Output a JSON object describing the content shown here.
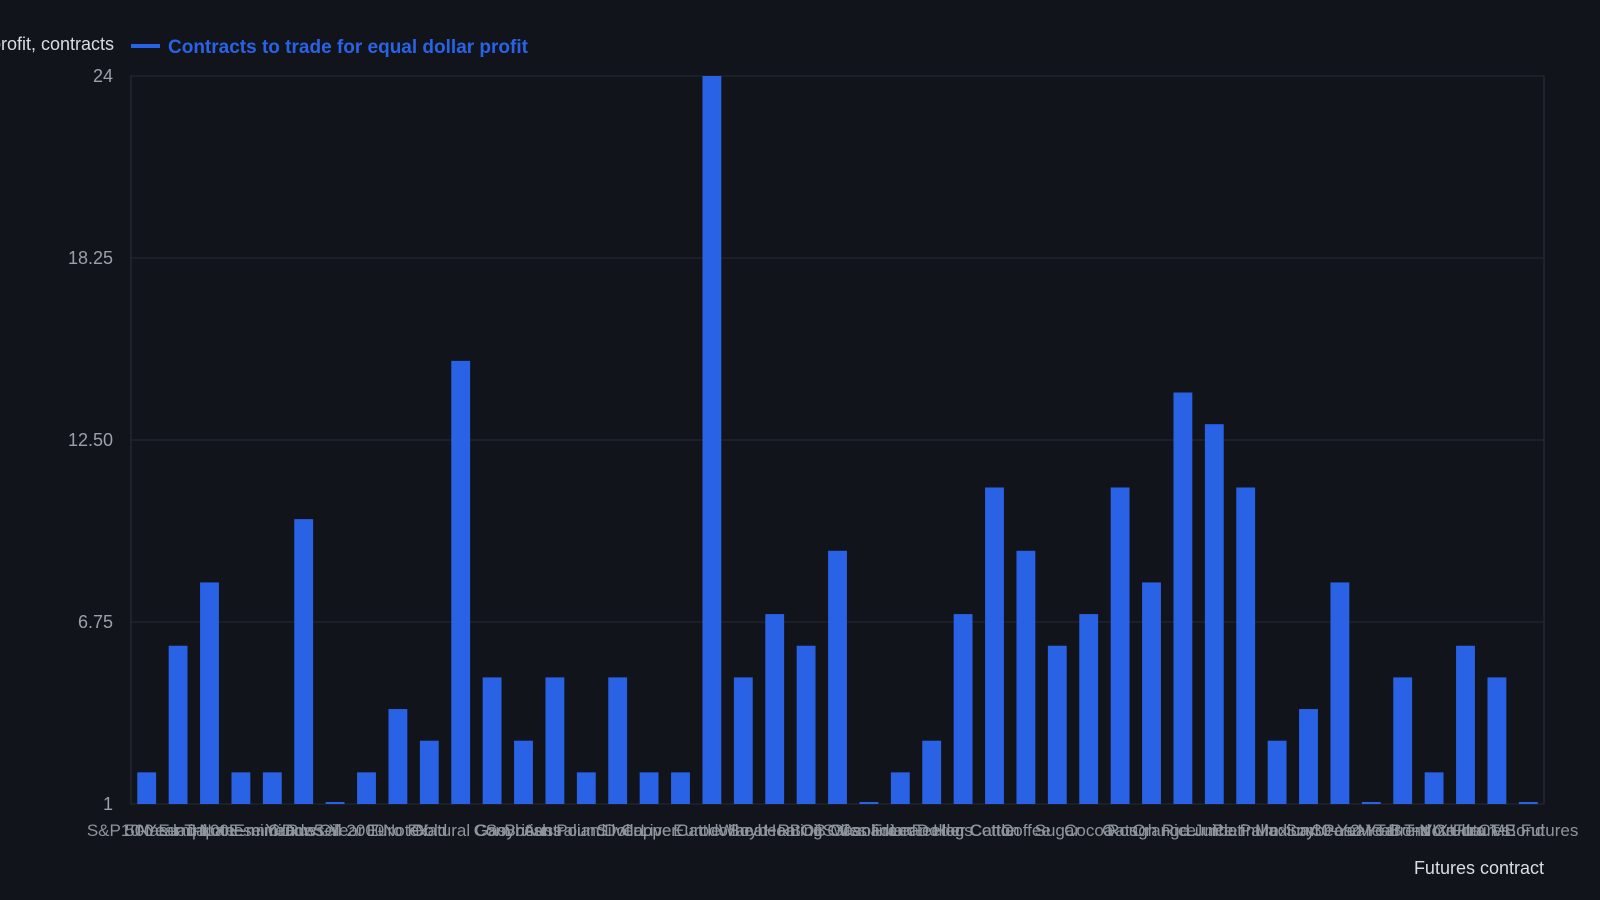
{
  "chart_data": {
    "type": "bar",
    "ylabel": "Equal dollar profit, contracts",
    "xlabel": "Futures contract",
    "ylim": [
      1,
      24
    ],
    "yticks": [
      "1",
      "6.75",
      "12.50",
      "18.25",
      "24"
    ],
    "grid": true,
    "legend_position": "top-left",
    "colors": {
      "bar": "#2a62e6",
      "background": "#11141b",
      "grid": "#262a33",
      "text": "#9aa0a8"
    },
    "series": [
      {
        "name": "Contracts to trade for equal dollar profit",
        "values": [
          2,
          6,
          8,
          2,
          2,
          10,
          1,
          2,
          4,
          3,
          15,
          5,
          3,
          5,
          2,
          5,
          2,
          2,
          24,
          5,
          7,
          6,
          9,
          1,
          2,
          3,
          7,
          11,
          9,
          6,
          7,
          11,
          8,
          14,
          13,
          11,
          3,
          4,
          8,
          1,
          5,
          2,
          6,
          5,
          1
        ]
      }
    ],
    "categories": [
      "S&P 500 E-mini",
      "10-Year T-Note",
      "Nasdaq 100 E-mini",
      "Japanese Yen",
      "E-mini Dow",
      "Crude Oil",
      "Russell 2000",
      "5-Year T-Note",
      "Euro FX",
      "Gold",
      "Natural Gas",
      "Corn",
      "Soybeans",
      "British Pound",
      "Australian Dollar",
      "Silver",
      "Copper",
      "Live Cattle",
      "Eurodollar",
      "Wheat",
      "Soybean Oil",
      "Heating Oil",
      "RBOB Gasoline",
      "Swiss Franc",
      "Canadian Dollar",
      "Lean Hogs",
      "Feeder Cattle",
      "Cotton",
      "Coffee",
      "Sugar",
      "Cocoa",
      "Oats",
      "Rough Rice",
      "Orange Juice",
      "Lumber",
      "Platinum",
      "Palladium",
      "Mexican Peso",
      "Soybean Meal",
      "30-Year T-Bond",
      "2-Year T-Note",
      "Brent Crude",
      "VIX Futures",
      "Ultra T-Bond",
      "CME Futures"
    ]
  },
  "legend": {
    "series_label": "Contracts to trade for equal dollar profit"
  }
}
